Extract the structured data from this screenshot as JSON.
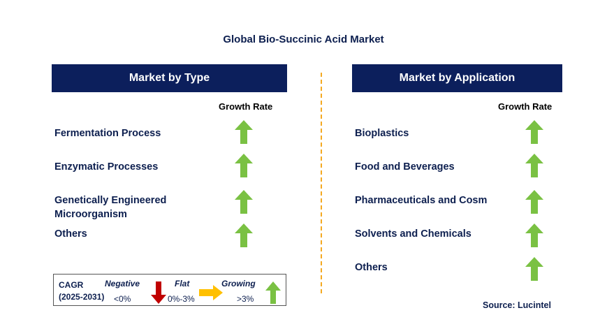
{
  "title": "Global Bio-Succinic Acid Market",
  "left_panel": {
    "header": "Market by Type",
    "growth_label": "Growth Rate",
    "rows": [
      {
        "label": "Fermentation Process",
        "trend": "growing"
      },
      {
        "label": "Enzymatic Processes",
        "trend": "growing"
      },
      {
        "label_line1": "Genetically Engineered",
        "label_line2": "Microorganism",
        "trend": "growing"
      },
      {
        "label": "Others",
        "trend": "growing"
      }
    ]
  },
  "right_panel": {
    "header": "Market by Application",
    "growth_label": "Growth Rate",
    "rows": [
      {
        "label": "Bioplastics",
        "trend": "growing"
      },
      {
        "label": "Food and Beverages",
        "trend": "growing"
      },
      {
        "label": "Pharmaceuticals and Cosm",
        "trend": "growing"
      },
      {
        "label": "Solvents and Chemicals",
        "trend": "growing"
      },
      {
        "label": "Others",
        "trend": "growing"
      }
    ]
  },
  "legend": {
    "cagr": "CAGR",
    "period": "(2025-2031)",
    "negative": "Negative",
    "negative_range": "<0%",
    "flat": "Flat",
    "flat_range": "0%-3%",
    "growing": "Growing",
    "growing_range": ">3%"
  },
  "source": "Source: Lucintel",
  "colors": {
    "header_bg": "#0c1f5c",
    "text": "#0d1f4f",
    "growing_arrow": "#7ac143",
    "negative_arrow": "#c00000",
    "flat_arrow": "#ffc000",
    "divider": "#f4a922"
  },
  "icons": {
    "growing": "up-arrow-icon",
    "negative": "down-arrow-icon",
    "flat": "right-arrow-icon"
  }
}
